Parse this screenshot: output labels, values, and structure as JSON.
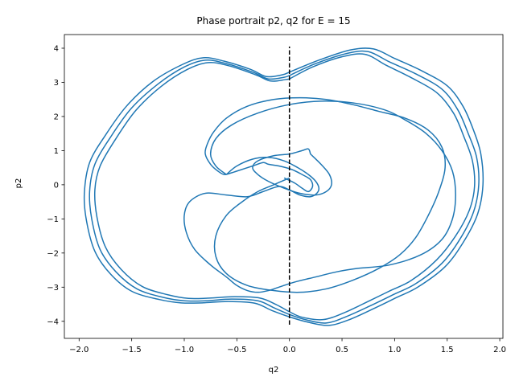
{
  "chart_data": {
    "type": "line",
    "title": "Phase portrait p2, q2 for E = 15",
    "xlabel": "q2",
    "ylabel": "p2",
    "xlim": [
      -2.14,
      2.03
    ],
    "ylim": [
      -4.5,
      4.4
    ],
    "xticks": [
      -2.0,
      -1.5,
      -1.0,
      -0.5,
      0.0,
      0.5,
      1.0,
      1.5,
      2.0
    ],
    "xtick_labels": [
      "−2.0",
      "−1.5",
      "−1.0",
      "−0.5",
      "0.0",
      "0.5",
      "1.0",
      "1.5",
      "2.0"
    ],
    "yticks": [
      -4,
      -3,
      -2,
      -1,
      0,
      1,
      2,
      3,
      4
    ],
    "ytick_labels": [
      "−4",
      "−3",
      "−2",
      "−1",
      "0",
      "1",
      "2",
      "3",
      "4"
    ],
    "grid": false,
    "series": [
      {
        "color": "#1f77b4",
        "style": "solid",
        "loops": [
          {
            "x": [
              0.0,
              0.25,
              0.55,
              0.75,
              0.95,
              1.2,
              1.45,
              1.6,
              1.7,
              1.78,
              1.8,
              1.75,
              1.62,
              1.45,
              1.2,
              1.0,
              0.8,
              0.55,
              0.35,
              0.15,
              0.0,
              -0.15,
              -0.3,
              -0.55,
              -0.8,
              -1.0,
              -1.2,
              -1.45,
              -1.65,
              -1.8,
              -1.88,
              -1.9,
              -1.85,
              -1.7,
              -1.5,
              -1.25,
              -1.0,
              -0.8,
              -0.6,
              -0.35,
              -0.2,
              -0.05,
              0.0
            ],
            "y": [
              3.2,
              3.55,
              3.85,
              3.9,
              3.6,
              3.25,
              2.8,
              2.2,
              1.5,
              0.8,
              0.0,
              -0.8,
              -1.6,
              -2.3,
              -2.9,
              -3.2,
              -3.5,
              -3.85,
              -4.05,
              -3.95,
              -3.8,
              -3.6,
              -3.4,
              -3.35,
              -3.4,
              -3.4,
              -3.3,
              -3.05,
              -2.55,
              -1.9,
              -1.0,
              -0.2,
              0.6,
              1.4,
              2.25,
              2.95,
              3.45,
              3.65,
              3.55,
              3.3,
              3.1,
              3.15,
              3.2
            ]
          },
          {
            "x": [
              0.0,
              0.28,
              0.58,
              0.8,
              1.0,
              1.25,
              1.5,
              1.65,
              1.75,
              1.82,
              1.84,
              1.79,
              1.66,
              1.48,
              1.22,
              1.02,
              0.82,
              0.57,
              0.37,
              0.17,
              0.0,
              -0.17,
              -0.33,
              -0.58,
              -0.83,
              -1.03,
              -1.24,
              -1.5,
              -1.7,
              -1.85,
              -1.93,
              -1.95,
              -1.9,
              -1.75,
              -1.55,
              -1.3,
              -1.02,
              -0.82,
              -0.62,
              -0.37,
              -0.22,
              -0.07,
              0.0
            ],
            "y": [
              3.3,
              3.65,
              3.95,
              3.98,
              3.7,
              3.35,
              2.9,
              2.3,
              1.6,
              0.9,
              0.0,
              -0.85,
              -1.65,
              -2.4,
              -3.0,
              -3.3,
              -3.6,
              -3.95,
              -4.12,
              -4.02,
              -3.87,
              -3.68,
              -3.47,
              -3.42,
              -3.46,
              -3.46,
              -3.36,
              -3.12,
              -2.62,
              -1.95,
              -1.05,
              -0.25,
              0.65,
              1.45,
              2.3,
              3.02,
              3.52,
              3.72,
              3.62,
              3.38,
              3.17,
              3.22,
              3.3
            ]
          },
          {
            "x": [
              0.0,
              0.22,
              0.5,
              0.72,
              0.92,
              1.15,
              1.4,
              1.56,
              1.66,
              1.74,
              1.76,
              1.71,
              1.58,
              1.4,
              1.16,
              0.96,
              0.76,
              0.52,
              0.32,
              0.12,
              0.0,
              -0.12,
              -0.28,
              -0.52,
              -0.76,
              -0.96,
              -1.16,
              -1.4,
              -1.6,
              -1.75,
              -1.83,
              -1.85,
              -1.8,
              -1.65,
              -1.46,
              -1.22,
              -0.97,
              -0.77,
              -0.57,
              -0.32,
              -0.18,
              -0.04,
              0.0
            ],
            "y": [
              3.1,
              3.45,
              3.75,
              3.82,
              3.5,
              3.15,
              2.7,
              2.1,
              1.4,
              0.7,
              -0.05,
              -0.75,
              -1.5,
              -2.2,
              -2.8,
              -3.1,
              -3.4,
              -3.75,
              -3.95,
              -3.88,
              -3.72,
              -3.52,
              -3.32,
              -3.28,
              -3.32,
              -3.33,
              -3.22,
              -2.98,
              -2.48,
              -1.82,
              -0.95,
              -0.15,
              0.55,
              1.35,
              2.18,
              2.88,
              3.38,
              3.58,
              3.48,
              3.22,
              3.04,
              3.08,
              3.1
            ]
          },
          {
            "x": [
              -0.05,
              0.05,
              0.12,
              0.18,
              0.22,
              0.2,
              0.12,
              0.02,
              -0.1,
              -0.2,
              -0.25,
              -0.35,
              -0.5,
              -0.55,
              -0.62,
              -0.68,
              -0.75,
              -0.8,
              -0.78,
              -0.72,
              -0.6,
              -0.4,
              -0.15,
              0.1,
              0.35,
              0.6,
              0.85,
              1.1,
              1.32,
              1.45,
              1.48,
              1.42,
              1.32,
              1.2,
              1.05,
              0.85,
              0.6,
              0.35,
              0.1,
              -0.15,
              -0.4,
              -0.6,
              -0.7,
              -0.7,
              -0.6,
              -0.45,
              -0.3,
              -0.15,
              0.0
            ],
            "y": [
              0.2,
              0.05,
              -0.1,
              -0.2,
              -0.05,
              0.15,
              0.3,
              0.45,
              0.55,
              0.6,
              0.65,
              0.55,
              0.4,
              0.35,
              0.3,
              0.4,
              0.6,
              0.9,
              1.2,
              1.55,
              1.95,
              2.3,
              2.5,
              2.55,
              2.5,
              2.35,
              2.15,
              1.95,
              1.6,
              1.1,
              0.5,
              -0.2,
              -0.9,
              -1.55,
              -2.05,
              -2.45,
              -2.8,
              -3.05,
              -3.15,
              -3.1,
              -2.95,
              -2.6,
              -2.1,
              -1.5,
              -0.9,
              -0.5,
              -0.2,
              0.0,
              0.2
            ]
          },
          {
            "x": [
              -0.6,
              -0.5,
              -0.35,
              -0.2,
              -0.05,
              0.08,
              0.18,
              0.25,
              0.28,
              0.26,
              0.2,
              0.1,
              0.0,
              -0.1,
              -0.25,
              -0.4,
              -0.6,
              -0.8,
              -0.95,
              -1.0,
              -0.98,
              -0.9,
              -0.75,
              -0.6,
              -0.5,
              -0.4,
              -0.3,
              -0.2,
              -0.1,
              0.05,
              0.25,
              0.45,
              0.65,
              0.95,
              1.25,
              1.45,
              1.55,
              1.58,
              1.55,
              1.45,
              1.3,
              1.1,
              0.9,
              0.6,
              0.3,
              0.0,
              -0.3,
              -0.55,
              -0.7,
              -0.75,
              -0.7,
              -0.6
            ],
            "y": [
              0.3,
              0.55,
              0.75,
              0.8,
              0.7,
              0.5,
              0.3,
              0.1,
              -0.1,
              -0.25,
              -0.35,
              -0.3,
              -0.15,
              -0.05,
              -0.2,
              -0.35,
              -0.3,
              -0.25,
              -0.5,
              -0.9,
              -1.4,
              -1.9,
              -2.35,
              -2.7,
              -2.95,
              -3.1,
              -3.15,
              -3.1,
              -3.0,
              -2.85,
              -2.7,
              -2.55,
              -2.45,
              -2.35,
              -2.05,
              -1.6,
              -1.0,
              -0.3,
              0.4,
              1.0,
              1.5,
              1.9,
              2.2,
              2.4,
              2.45,
              2.35,
              2.1,
              1.75,
              1.35,
              0.9,
              0.55,
              0.3
            ]
          },
          {
            "x": [
              0.2,
              0.3,
              0.38,
              0.4,
              0.35,
              0.25,
              0.1,
              -0.05,
              -0.2,
              -0.3,
              -0.35,
              -0.3,
              -0.15,
              0.0,
              0.12,
              0.18,
              0.2
            ],
            "y": [
              0.9,
              0.6,
              0.3,
              0.0,
              -0.2,
              -0.3,
              -0.25,
              -0.1,
              0.1,
              0.3,
              0.5,
              0.7,
              0.85,
              0.9,
              1.0,
              1.05,
              0.9
            ]
          }
        ]
      },
      {
        "color": "#000000",
        "style": "dashed",
        "x": [
          0.0,
          0.0
        ],
        "y": [
          -4.1,
          4.05
        ]
      }
    ]
  }
}
